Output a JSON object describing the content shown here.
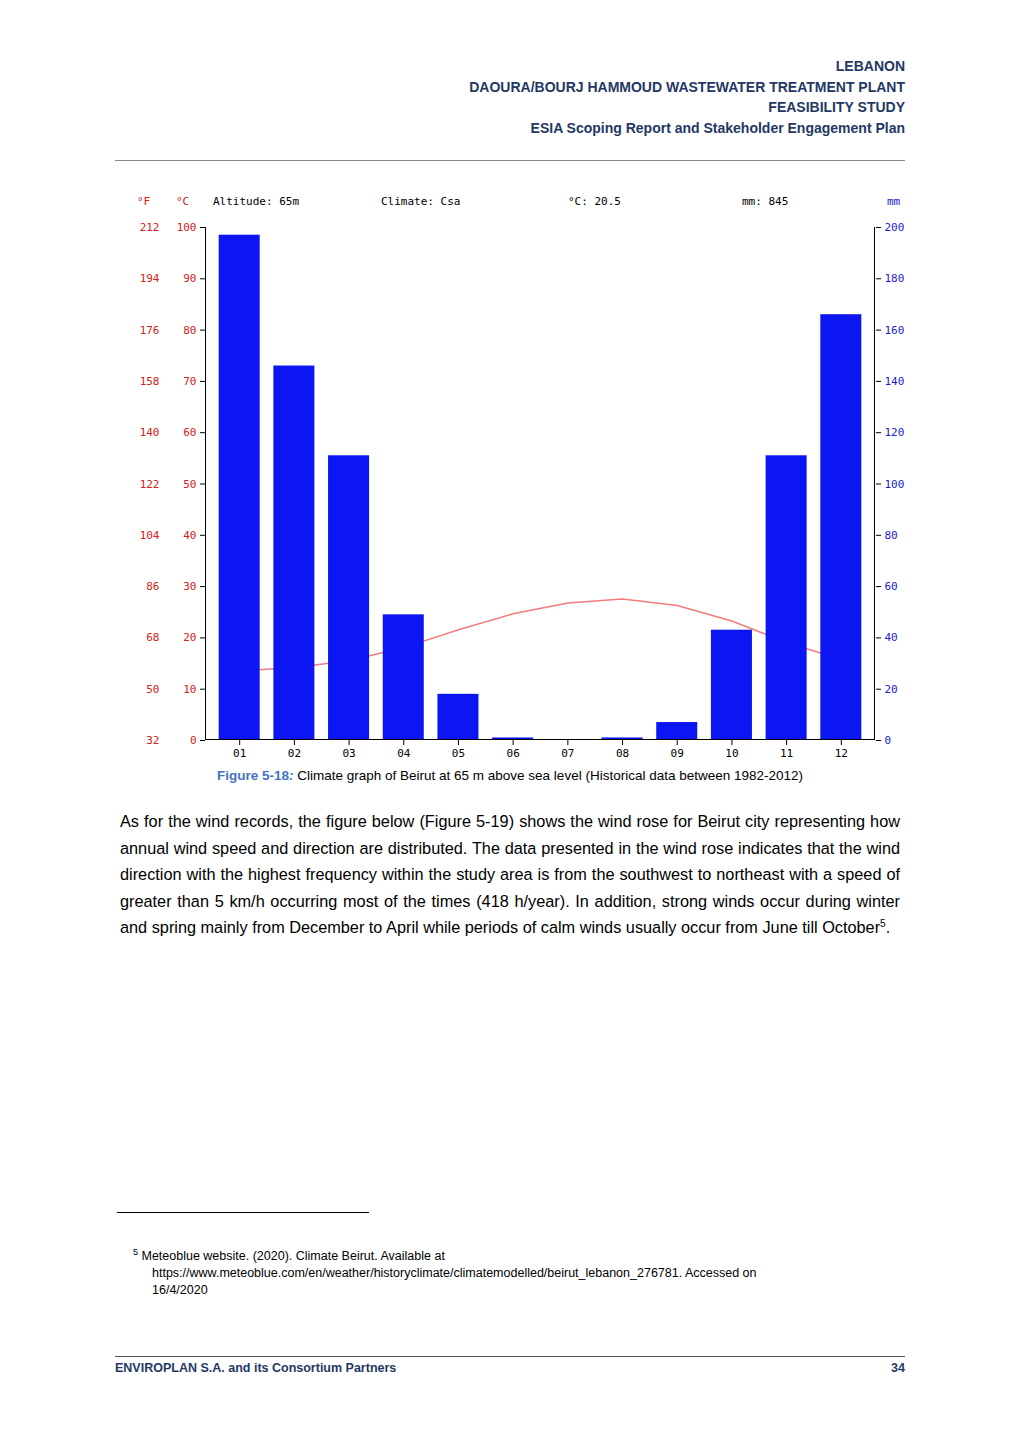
{
  "header": {
    "lines": [
      "LEBANON",
      "DAOURA/BOURJ HAMMOUD WASTEWATER TREATMENT PLANT",
      "FEASIBILITY STUDY",
      "ESIA Scoping Report and Stakeholder Engagement Plan"
    ]
  },
  "chart_data": {
    "type": "bar",
    "ylabel": "°C",
    "y2label": "mm",
    "y3label": "°F",
    "annotations": [
      "Altitude: 65m",
      "Climate: Csa",
      "°C: 20.5",
      "mm: 845"
    ],
    "categories": [
      "01",
      "02",
      "03",
      "04",
      "05",
      "06",
      "07",
      "08",
      "09",
      "10",
      "11",
      "12"
    ],
    "series": [
      {
        "type": "bar",
        "axis": "y2",
        "color": "#0b16f2",
        "values": [
          197,
          146,
          111,
          49,
          18,
          1,
          0,
          1,
          7,
          43,
          111,
          166
        ]
      },
      {
        "type": "line",
        "color": "#f07c7c",
        "values": [
          13.6,
          14.2,
          15.6,
          18.1,
          21.6,
          24.7,
          26.8,
          27.6,
          26.3,
          23.3,
          19.1,
          15.8
        ]
      }
    ],
    "ylim": [
      0,
      100
    ],
    "yticks": [
      0,
      10,
      20,
      30,
      40,
      50,
      60,
      70,
      80,
      90,
      100
    ],
    "y2lim": [
      0,
      200
    ],
    "y2ticks": [
      0,
      20,
      40,
      60,
      80,
      100,
      120,
      140,
      160,
      180,
      200
    ],
    "y3lim": [
      32,
      212
    ],
    "y3ticks": [
      32,
      50,
      68,
      86,
      104,
      122,
      140,
      158,
      176,
      194,
      212
    ],
    "grid": false
  },
  "caption": {
    "label": "Figure 5-18",
    "separator": ":",
    "text": " Climate graph of Beirut at 65 m above sea level (Historical data between 1982-2012)"
  },
  "paragraph": {
    "text": "As for the wind records, the figure below (Figure 5-19) shows the wind rose for Beirut city representing how annual wind speed and direction are distributed. The data presented in the wind rose indicates that the wind direction with the highest frequency within the study area is from the southwest to northeast with a speed of greater than 5 km/h occurring most of the times (418 h/year). In addition, strong winds occur during winter and spring mainly from December to April while periods of calm winds usually occur from June till October",
    "footnote_ref": "5",
    "after_ref": "."
  },
  "footnote": {
    "mark": "5",
    "lines": [
      "Meteoblue website. (2020). Climate Beirut. Available at",
      "https://www.meteoblue.com/en/weather/historyclimate/climatemodelled/beirut_lebanon_276781. Accessed on",
      "16/4/2020"
    ]
  },
  "footer": {
    "left": "ENVIROPLAN S.A. and its Consortium Partners",
    "page": "34"
  }
}
